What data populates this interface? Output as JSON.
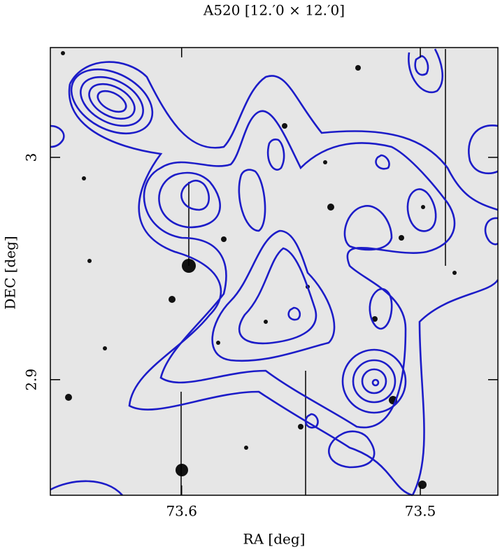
{
  "chart_data": {
    "type": "contour",
    "title": "A520  [12.′0 × 12.′0]",
    "x_label": "RA [deg]",
    "y_label": "DEC [deg]",
    "xlim": [
      73.655,
      73.4675
    ],
    "ylim": [
      2.848,
      3.0494
    ],
    "xticks": [
      73.6,
      73.5
    ],
    "yticks": [
      {
        "value": 3,
        "label": "3"
      },
      2.9
    ],
    "color": "#1c1cc8"
  }
}
